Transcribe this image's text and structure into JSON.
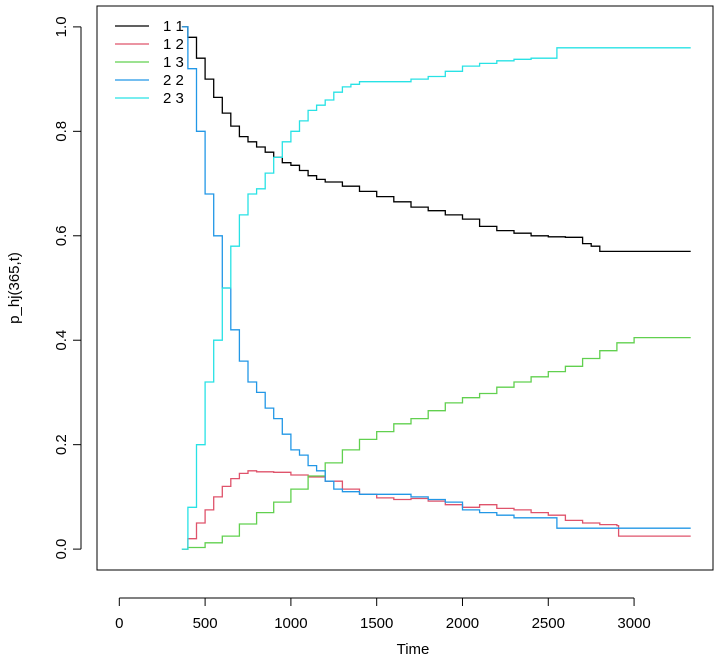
{
  "chart_data": {
    "type": "line",
    "step": true,
    "title": "",
    "xlabel": "Time",
    "ylabel": "p_hj(365,t)",
    "xlim": [
      -130,
      3460
    ],
    "ylim": [
      -0.04,
      1.04
    ],
    "xticks": [
      0,
      500,
      1000,
      1500,
      2000,
      2500,
      3000
    ],
    "yticks": [
      0.0,
      0.2,
      0.4,
      0.6,
      0.8,
      1.0
    ],
    "xtick_labels": [
      "0",
      "500",
      "1000",
      "1500",
      "2000",
      "2500",
      "3000"
    ],
    "ytick_labels": [
      "0.0",
      "0.2",
      "0.4",
      "0.6",
      "0.8",
      "1.0"
    ],
    "grid": false,
    "legend_position": "top-left",
    "series": [
      {
        "name": "1 1",
        "color": "#000000",
        "x": [
          365,
          400,
          450,
          500,
          550,
          600,
          650,
          700,
          750,
          800,
          850,
          900,
          950,
          1000,
          1050,
          1100,
          1150,
          1200,
          1300,
          1400,
          1500,
          1600,
          1700,
          1800,
          1900,
          2000,
          2100,
          2200,
          2300,
          2400,
          2500,
          2600,
          2700,
          2750,
          2800,
          3000,
          3330
        ],
        "y": [
          1.0,
          0.98,
          0.94,
          0.9,
          0.865,
          0.835,
          0.81,
          0.79,
          0.78,
          0.77,
          0.76,
          0.75,
          0.74,
          0.735,
          0.725,
          0.715,
          0.708,
          0.703,
          0.695,
          0.685,
          0.675,
          0.665,
          0.655,
          0.648,
          0.64,
          0.632,
          0.618,
          0.61,
          0.605,
          0.6,
          0.598,
          0.597,
          0.585,
          0.58,
          0.57,
          0.57,
          0.57
        ]
      },
      {
        "name": "1 2",
        "color": "#df536b",
        "x": [
          365,
          400,
          450,
          500,
          550,
          600,
          650,
          700,
          750,
          800,
          900,
          1000,
          1100,
          1200,
          1300,
          1400,
          1500,
          1600,
          1700,
          1800,
          1900,
          2000,
          2100,
          2200,
          2300,
          2400,
          2500,
          2600,
          2700,
          2800,
          2900,
          2910,
          3330
        ],
        "y": [
          0.0,
          0.02,
          0.05,
          0.075,
          0.1,
          0.12,
          0.135,
          0.145,
          0.15,
          0.148,
          0.147,
          0.142,
          0.138,
          0.13,
          0.115,
          0.105,
          0.098,
          0.095,
          0.097,
          0.092,
          0.085,
          0.08,
          0.085,
          0.078,
          0.075,
          0.07,
          0.065,
          0.055,
          0.05,
          0.047,
          0.045,
          0.025,
          0.025
        ]
      },
      {
        "name": "1 3",
        "color": "#61d04f",
        "x": [
          365,
          400,
          500,
          600,
          700,
          800,
          900,
          1000,
          1100,
          1200,
          1300,
          1400,
          1500,
          1600,
          1700,
          1800,
          1900,
          2000,
          2100,
          2200,
          2300,
          2400,
          2500,
          2600,
          2700,
          2800,
          2900,
          3000,
          3330
        ],
        "y": [
          0.0,
          0.003,
          0.012,
          0.025,
          0.048,
          0.07,
          0.09,
          0.115,
          0.14,
          0.165,
          0.19,
          0.21,
          0.225,
          0.24,
          0.25,
          0.265,
          0.28,
          0.29,
          0.298,
          0.31,
          0.32,
          0.33,
          0.34,
          0.35,
          0.365,
          0.38,
          0.395,
          0.405,
          0.405
        ]
      },
      {
        "name": "2 2",
        "color": "#2297e6",
        "x": [
          365,
          400,
          450,
          500,
          550,
          600,
          650,
          700,
          750,
          800,
          850,
          900,
          950,
          1000,
          1050,
          1100,
          1150,
          1200,
          1250,
          1300,
          1400,
          1500,
          1600,
          1700,
          1800,
          1900,
          2000,
          2100,
          2200,
          2300,
          2400,
          2500,
          2550,
          2600,
          3000,
          3330
        ],
        "y": [
          1.0,
          0.92,
          0.8,
          0.68,
          0.6,
          0.5,
          0.42,
          0.36,
          0.32,
          0.3,
          0.27,
          0.25,
          0.22,
          0.19,
          0.18,
          0.16,
          0.15,
          0.13,
          0.115,
          0.11,
          0.105,
          0.105,
          0.105,
          0.1,
          0.095,
          0.09,
          0.075,
          0.07,
          0.065,
          0.06,
          0.06,
          0.06,
          0.04,
          0.04,
          0.04,
          0.04
        ]
      },
      {
        "name": "2 3",
        "color": "#28e2e5",
        "x": [
          365,
          400,
          450,
          500,
          550,
          600,
          650,
          700,
          750,
          800,
          850,
          900,
          950,
          1000,
          1050,
          1100,
          1150,
          1200,
          1250,
          1300,
          1350,
          1400,
          1500,
          1600,
          1700,
          1800,
          1900,
          2000,
          2100,
          2200,
          2300,
          2400,
          2500,
          2550,
          3000,
          3330
        ],
        "y": [
          0.0,
          0.08,
          0.2,
          0.32,
          0.4,
          0.5,
          0.58,
          0.64,
          0.68,
          0.69,
          0.72,
          0.75,
          0.78,
          0.8,
          0.82,
          0.84,
          0.85,
          0.86,
          0.875,
          0.885,
          0.89,
          0.895,
          0.895,
          0.895,
          0.9,
          0.905,
          0.915,
          0.925,
          0.93,
          0.935,
          0.938,
          0.94,
          0.94,
          0.96,
          0.96,
          0.96
        ]
      }
    ]
  }
}
